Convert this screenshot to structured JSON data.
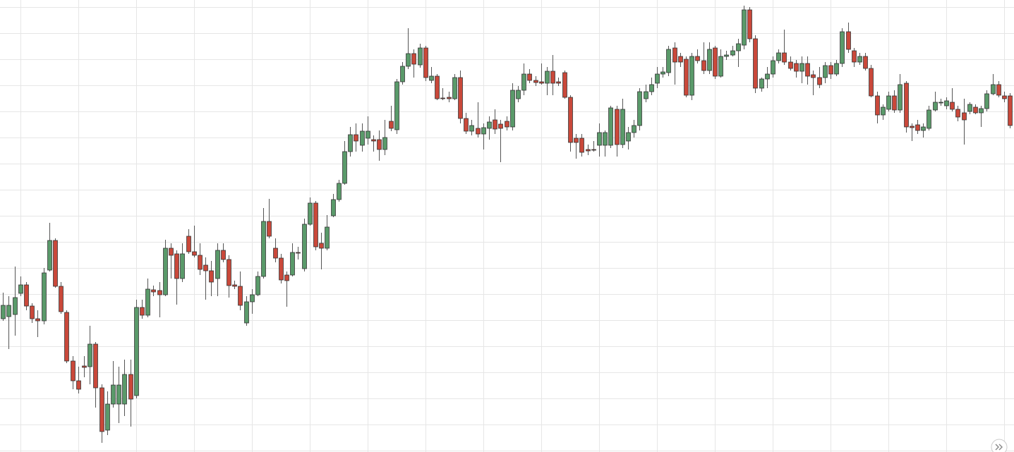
{
  "chart_data": {
    "type": "candlestick",
    "open": [
      189,
      192,
      195,
      225,
      237,
      207,
      189,
      186,
      258,
      300,
      235,
      198,
      129,
      101,
      122,
      121,
      153,
      91,
      31,
      68,
      68,
      68,
      110,
      80,
      205,
      194,
      230,
      229,
      223,
      289,
      281,
      246,
      306,
      284,
      279,
      265,
      257,
      246,
      286,
      273,
      237,
      235,
      183,
      213,
      223,
      249,
      327,
      289,
      275,
      251,
      251,
      283,
      260,
      323,
      353,
      296,
      289,
      335,
      358,
      381,
      426,
      450,
      435,
      445,
      443,
      443,
      429,
      469,
      457,
      525,
      547,
      565,
      549,
      573,
      527,
      533,
      502,
      503,
      501,
      531,
      473,
      455,
      459,
      451,
      459,
      471,
      465,
      469,
      461,
      501,
      513,
      536,
      527,
      525,
      523,
      540,
      525,
      538,
      503,
      445,
      445,
      429,
      429,
      435,
      435,
      435,
      486,
      436,
      441,
      453,
      463,
      501,
      511,
      523,
      536,
      538,
      573,
      561,
      557,
      506,
      561,
      555,
      541,
      573,
      533,
      561,
      563,
      569,
      577,
      627,
      586,
      516,
      529,
      536,
      555,
      566,
      553,
      551,
      540,
      551,
      535,
      531,
      531,
      548,
      536,
      551,
      596,
      569,
      553,
      561,
      544,
      505,
      478,
      486,
      505,
      485,
      523,
      462,
      464,
      456,
      459,
      485,
      495,
      491,
      496,
      486,
      481,
      483,
      489,
      481,
      487,
      508,
      521,
      505,
      505
    ],
    "high": [
      226,
      221,
      263,
      249,
      241,
      211,
      201,
      261,
      325,
      303,
      241,
      201,
      136,
      121,
      136,
      179,
      156,
      96,
      86,
      129,
      121,
      131,
      131,
      216,
      216,
      246,
      236,
      241,
      301,
      296,
      286,
      296,
      316,
      321,
      296,
      276,
      271,
      296,
      296,
      279,
      243,
      256,
      221,
      231,
      256,
      346,
      359,
      303,
      281,
      256,
      296,
      291,
      331,
      361,
      356,
      311,
      336,
      366,
      386,
      441,
      461,
      466,
      466,
      476,
      449,
      456,
      471,
      491,
      529,
      553,
      601,
      571,
      579,
      576,
      546,
      536,
      516,
      511,
      536,
      541,
      481,
      471,
      496,
      466,
      476,
      486,
      471,
      476,
      523,
      519,
      551,
      543,
      533,
      551,
      546,
      563,
      531,
      541,
      506,
      451,
      451,
      436,
      441,
      466,
      456,
      491,
      491,
      501,
      461,
      471,
      516,
      521,
      531,
      546,
      546,
      576,
      581,
      566,
      561,
      566,
      571,
      581,
      581,
      576,
      571,
      569,
      576,
      586,
      633,
      631,
      591,
      531,
      546,
      561,
      571,
      599,
      561,
      556,
      561,
      561,
      541,
      546,
      553,
      553,
      556,
      601,
      609,
      573,
      566,
      566,
      549,
      511,
      493,
      511,
      513,
      536,
      526,
      466,
      471,
      466,
      491,
      511,
      501,
      503,
      516,
      491,
      501,
      496,
      493,
      491,
      513,
      536,
      526,
      511,
      509
    ],
    "low": [
      186,
      146,
      165,
      221,
      201,
      183,
      163,
      181,
      256,
      233,
      196,
      126,
      89,
      83,
      106,
      96,
      63,
      13,
      24,
      63,
      41,
      51,
      36,
      76,
      189,
      191,
      221,
      191,
      221,
      246,
      209,
      241,
      281,
      276,
      251,
      216,
      221,
      221,
      269,
      219,
      231,
      201,
      179,
      196,
      221,
      246,
      303,
      269,
      239,
      206,
      249,
      273,
      256,
      321,
      286,
      259,
      286,
      333,
      355,
      379,
      419,
      426,
      426,
      436,
      426,
      413,
      421,
      455,
      451,
      521,
      543,
      531,
      545,
      526,
      523,
      499,
      499,
      496,
      499,
      466,
      451,
      449,
      446,
      429,
      443,
      451,
      411,
      456,
      456,
      496,
      506,
      523,
      519,
      521,
      506,
      506,
      519,
      501,
      426,
      416,
      419,
      421,
      426,
      419,
      419,
      431,
      419,
      431,
      429,
      446,
      456,
      496,
      506,
      516,
      531,
      533,
      521,
      546,
      503,
      499,
      551,
      536,
      536,
      529,
      531,
      556,
      561,
      546,
      571,
      581,
      509,
      511,
      516,
      531,
      551,
      549,
      541,
      531,
      523,
      521,
      506,
      516,
      523,
      529,
      533,
      546,
      566,
      546,
      549,
      541,
      503,
      466,
      471,
      483,
      481,
      481,
      453,
      441,
      451,
      446,
      456,
      483,
      491,
      486,
      483,
      469,
      436,
      479,
      479,
      461,
      483,
      506,
      503,
      496,
      459
    ],
    "close": [
      208,
      208,
      219,
      237,
      207,
      189,
      186,
      254,
      300,
      235,
      199,
      129,
      101,
      89,
      120,
      153,
      91,
      29,
      68,
      95,
      95,
      110,
      75,
      205,
      194,
      231,
      227,
      223,
      289,
      279,
      246,
      281,
      284,
      279,
      259,
      257,
      241,
      286,
      273,
      236,
      235,
      208,
      213,
      223,
      249,
      327,
      306,
      275,
      244,
      243,
      283,
      282,
      323,
      353,
      291,
      289,
      319,
      358,
      381,
      426,
      450,
      441,
      455,
      455,
      441,
      429,
      446,
      459,
      525,
      547,
      565,
      550,
      573,
      531,
      533,
      501,
      501,
      501,
      531,
      473,
      455,
      463,
      451,
      460,
      468,
      458,
      459,
      461,
      513,
      513,
      536,
      527,
      524,
      523,
      540,
      523,
      523,
      503,
      439,
      439,
      425,
      427,
      428,
      453,
      453,
      488,
      436,
      486,
      453,
      463,
      511,
      511,
      521,
      536,
      539,
      571,
      553,
      553,
      506,
      561,
      555,
      541,
      571,
      533,
      561,
      563,
      569,
      579,
      627,
      586,
      516,
      529,
      536,
      555,
      566,
      553,
      544,
      540,
      551,
      533,
      531,
      521,
      548,
      536,
      551,
      596,
      571,
      553,
      561,
      544,
      505,
      478,
      489,
      505,
      485,
      521,
      461,
      460,
      456,
      461,
      485,
      496,
      496,
      498,
      486,
      475,
      471,
      493,
      481,
      487,
      508,
      521,
      506,
      501,
      463
    ],
    "up_color": "#5a9a6a",
    "down_color": "#c9483a",
    "xlim": [
      -0.5,
      174.7
    ],
    "ylim": [
      0,
      641
    ],
    "xticks": [
      3,
      13,
      23,
      33,
      43,
      53,
      63,
      73,
      83,
      93,
      103,
      113,
      123,
      133,
      143,
      153,
      163,
      173
    ],
    "yticks": [
      2,
      39,
      76,
      113,
      150,
      187,
      224,
      261,
      298,
      335,
      372,
      409,
      446,
      483,
      520,
      557,
      594,
      631
    ],
    "grid": true
  }
}
